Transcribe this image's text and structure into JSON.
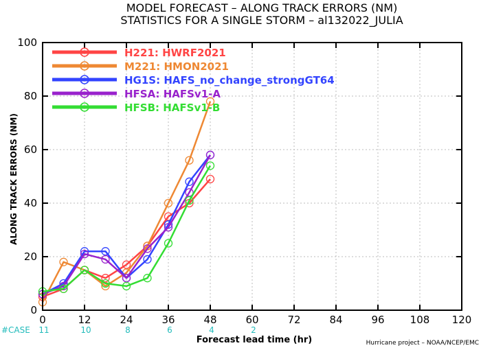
{
  "chart_data": {
    "type": "line",
    "title_lines": [
      "MODEL FORECAST – ALONG TRACK ERRORS (NM)",
      "STATISTICS FOR A SINGLE STORM – al132022_JULIA"
    ],
    "xlabel": "Forecast lead time (hr)",
    "ylabel": "ALONG TRACK ERRORS (NM)",
    "xlim": [
      0,
      120
    ],
    "ylim": [
      0,
      100
    ],
    "x_ticks": [
      0,
      12,
      24,
      36,
      48,
      60,
      72,
      84,
      96,
      108,
      120
    ],
    "y_ticks": [
      0,
      20,
      40,
      60,
      80,
      100
    ],
    "grid": true,
    "legend_position": "top-left",
    "series": [
      {
        "name": "H221: HWRF2021",
        "color": "#ff4444",
        "x": [
          0,
          6,
          12,
          18,
          24,
          30,
          36,
          42,
          48
        ],
        "y": [
          5,
          8,
          15,
          12,
          17,
          24,
          35,
          40,
          49
        ]
      },
      {
        "name": "M221: HMON2021",
        "color": "#ee8833",
        "x": [
          0,
          6,
          12,
          18,
          24,
          30,
          36,
          42,
          48
        ],
        "y": [
          3,
          18,
          15,
          9,
          14,
          24,
          40,
          56,
          78
        ]
      },
      {
        "name": "HG1S: HAFS_no_change_strongGT64",
        "color": "#3344ff",
        "x": [
          0,
          6,
          12,
          18,
          24,
          30,
          36,
          42,
          48
        ],
        "y": [
          6,
          10,
          22,
          22,
          12,
          19,
          32,
          48,
          58
        ]
      },
      {
        "name": "HFSA: HAFSv1-A",
        "color": "#9922cc",
        "x": [
          0,
          6,
          12,
          18,
          24,
          30,
          36,
          42,
          48
        ],
        "y": [
          6,
          9,
          21,
          19,
          12,
          23,
          31,
          44,
          58
        ]
      },
      {
        "name": "HFSB: HAFSv1-B",
        "color": "#33dd33",
        "x": [
          0,
          6,
          12,
          18,
          24,
          30,
          36,
          42,
          48
        ],
        "y": [
          7,
          8,
          15,
          10,
          9,
          12,
          25,
          41,
          54
        ]
      }
    ],
    "case_counts": {
      "label": "#CASE",
      "values": [
        {
          "x": 0,
          "n": "11"
        },
        {
          "x": 12,
          "n": "10"
        },
        {
          "x": 24,
          "n": "8"
        },
        {
          "x": 36,
          "n": "6"
        },
        {
          "x": 48,
          "n": "4"
        },
        {
          "x": 60,
          "n": "2"
        }
      ]
    },
    "credit": "Hurricane project – NOAA/NCEP/EMC"
  },
  "colors": {
    "case_text": "#22bbbb",
    "grid": "#bbbbbb",
    "axis": "#000000"
  }
}
